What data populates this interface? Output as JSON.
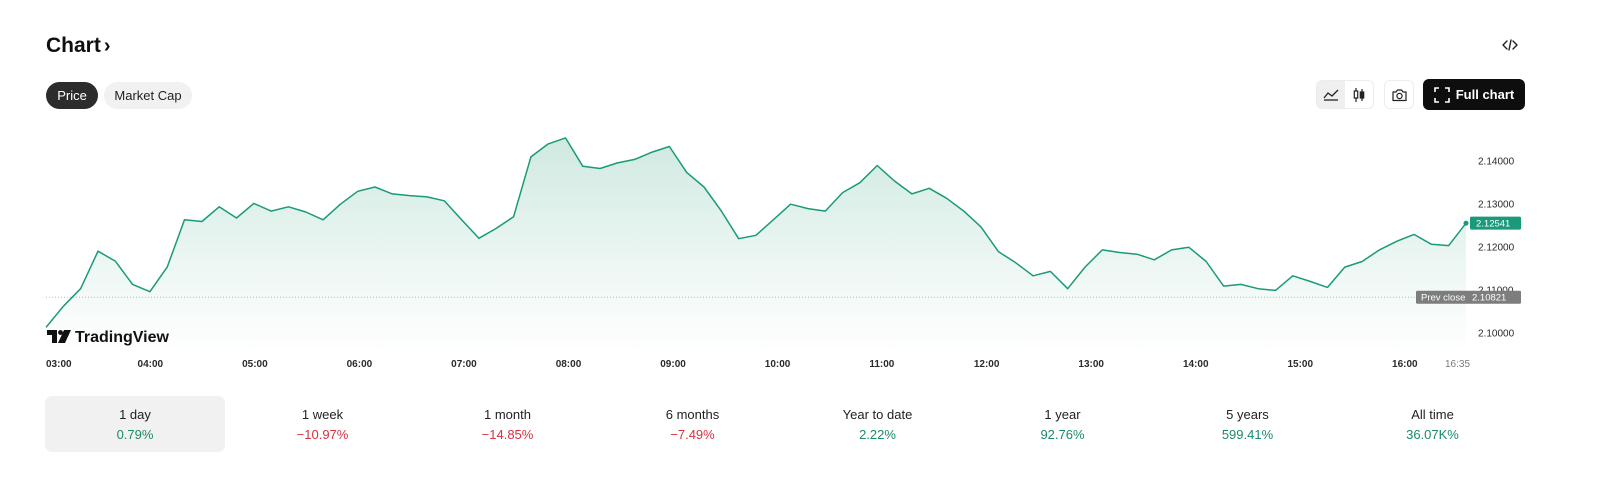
{
  "header": {
    "title": "Chart",
    "title_chevron": "›",
    "embed_icon": "code-icon"
  },
  "toggles": {
    "price": "Price",
    "market_cap": "Market Cap"
  },
  "toolbar": {
    "line_icon": "area-chart-icon",
    "candle_icon": "candlestick-icon",
    "camera_icon": "camera-icon",
    "full_chart": "Full chart"
  },
  "colors": {
    "line": "#1a9a7a",
    "fill_top": "#cfe9e0",
    "badge": "#1a9a7a",
    "prev_close_badge": "#7d7d7d",
    "positive": "#1a8a6b",
    "negative": "#d8313f"
  },
  "watermark": "TradingView",
  "chart_data": {
    "type": "area",
    "x_ticks": [
      "03:00",
      "04:00",
      "05:00",
      "06:00",
      "07:00",
      "08:00",
      "09:00",
      "10:00",
      "11:00",
      "12:00",
      "13:00",
      "14:00",
      "15:00",
      "16:00",
      "16:35"
    ],
    "y_ticks": [
      "2.14000",
      "2.13000",
      "2.12000",
      "2.11000",
      "2.10000"
    ],
    "ylim": [
      2.0955,
      2.1475
    ],
    "last_price": "2.12541",
    "prev_close": {
      "label": "Prev close",
      "value": "2.10821"
    },
    "x": [
      "03:00",
      "03:10",
      "03:20",
      "03:30",
      "03:40",
      "03:50",
      "04:00",
      "04:10",
      "04:20",
      "04:30",
      "04:40",
      "04:50",
      "05:00",
      "05:10",
      "05:20",
      "05:30",
      "05:40",
      "05:50",
      "06:00",
      "06:10",
      "06:20",
      "06:30",
      "06:40",
      "06:50",
      "07:00",
      "07:10",
      "07:20",
      "07:30",
      "07:40",
      "07:50",
      "08:00",
      "08:10",
      "08:20",
      "08:30",
      "08:40",
      "08:50",
      "09:00",
      "09:10",
      "09:20",
      "09:30",
      "09:40",
      "09:50",
      "10:00",
      "10:10",
      "10:20",
      "10:30",
      "10:40",
      "10:50",
      "11:00",
      "11:10",
      "11:20",
      "11:30",
      "11:40",
      "11:50",
      "12:00",
      "12:10",
      "12:20",
      "12:30",
      "12:40",
      "12:50",
      "13:00",
      "13:10",
      "13:20",
      "13:30",
      "13:40",
      "13:50",
      "14:00",
      "14:10",
      "14:20",
      "14:30",
      "14:40",
      "14:50",
      "15:00",
      "15:10",
      "15:20",
      "15:30",
      "15:40",
      "15:50",
      "16:00",
      "16:10",
      "16:20",
      "16:30",
      "16:35"
    ],
    "series": [
      {
        "values": [
          2.1012,
          2.1061,
          2.1102,
          2.1189,
          2.1166,
          2.1112,
          2.1095,
          2.1152,
          2.1262,
          2.1258,
          2.1292,
          2.1266,
          2.13,
          2.1282,
          2.1292,
          2.128,
          2.1262,
          2.1298,
          2.1328,
          2.1338,
          2.1322,
          2.1318,
          2.1315,
          2.1306,
          2.1262,
          2.1219,
          2.1242,
          2.1269,
          2.1408,
          2.1438,
          2.1452,
          2.1386,
          2.1381,
          2.1394,
          2.1402,
          2.1419,
          2.1432,
          2.1372,
          2.1338,
          2.1282,
          2.1218,
          2.1226,
          2.1262,
          2.1298,
          2.1288,
          2.1282,
          2.1325,
          2.1348,
          2.1388,
          2.1352,
          2.1322,
          2.1335,
          2.1312,
          2.1282,
          2.1245,
          2.1188,
          2.1162,
          2.1132,
          2.1142,
          2.1102,
          2.1152,
          2.1192,
          2.1186,
          2.1182,
          2.1169,
          2.1192,
          2.1198,
          2.1165,
          2.1108,
          2.1112,
          2.1102,
          2.1098,
          2.1132,
          2.1119,
          2.1105,
          2.1152,
          2.1165,
          2.1192,
          2.1212,
          2.1228,
          2.1205,
          2.1202,
          2.1254
        ]
      }
    ]
  },
  "periods": [
    {
      "label": "1 day",
      "change": "0.79%",
      "dir": "pos"
    },
    {
      "label": "1 week",
      "change": "−10.97%",
      "dir": "neg"
    },
    {
      "label": "1 month",
      "change": "−14.85%",
      "dir": "neg"
    },
    {
      "label": "6 months",
      "change": "−7.49%",
      "dir": "neg"
    },
    {
      "label": "Year to date",
      "change": "2.22%",
      "dir": "pos"
    },
    {
      "label": "1 year",
      "change": "92.76%",
      "dir": "pos"
    },
    {
      "label": "5 years",
      "change": "599.41%",
      "dir": "pos"
    },
    {
      "label": "All time",
      "change": "36.07K%",
      "dir": "pos"
    }
  ]
}
